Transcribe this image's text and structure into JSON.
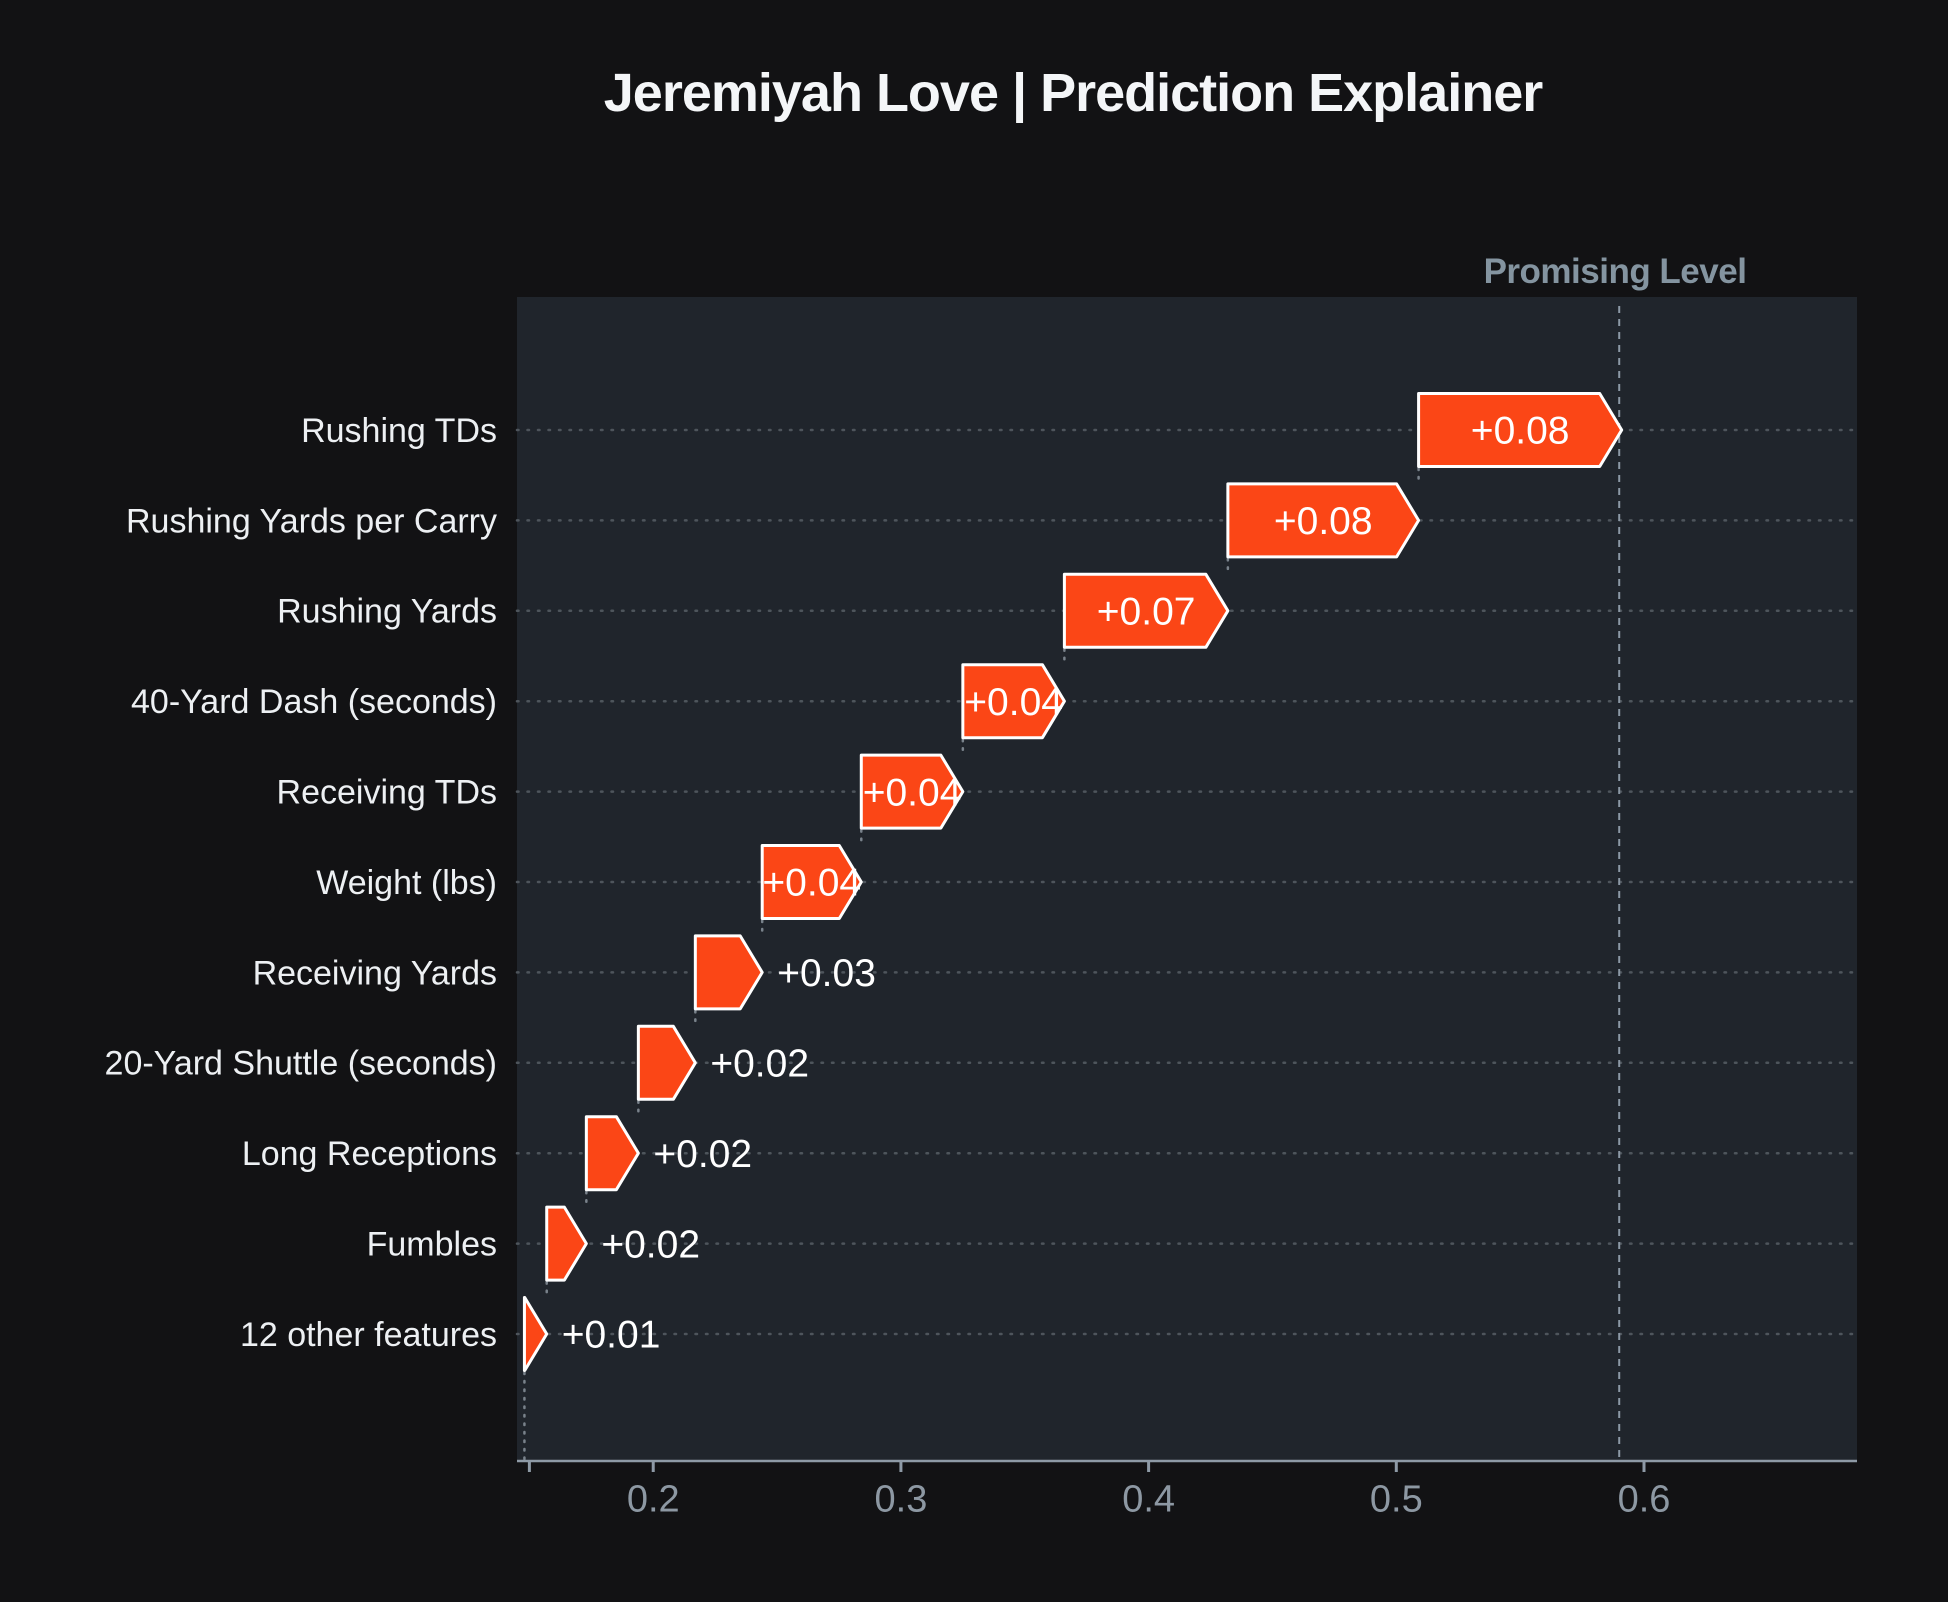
{
  "title": "Jeremiyah Love | Prediction Explainer",
  "colors": {
    "background": "#121214",
    "plot_background": "#20252C",
    "bar_fill": "#FB4616",
    "bar_stroke": "#FFFFFF",
    "value_text": "#FFFFFF",
    "category_text": "#EDF0F3",
    "title_text": "#F4F6F8",
    "axis": "#8E9AA6",
    "tick_text": "#8D98A3",
    "row_line": "#4E555C",
    "connector_line": "#79828B",
    "promising_line": "#8C99A6",
    "promising_text": "#8494A0"
  },
  "chart_data": {
    "type": "bar",
    "subtype": "waterfall",
    "orientation": "horizontal",
    "title": "Jeremiyah Love | Prediction Explainer",
    "grid": "dotted-row-lines",
    "x_axis": {
      "domain": [
        0.145,
        0.686
      ],
      "ticks": [
        {
          "value": 0.15,
          "label": ""
        },
        {
          "value": 0.2,
          "label": "0.2"
        },
        {
          "value": 0.3,
          "label": "0.3"
        },
        {
          "value": 0.4,
          "label": "0.4"
        },
        {
          "value": 0.5,
          "label": "0.5"
        },
        {
          "value": 0.6,
          "label": "0.6"
        }
      ]
    },
    "base_value": 0.148,
    "reference_line": {
      "label": "Promising Level",
      "value": 0.59
    },
    "features": [
      {
        "label": "Rushing TDs",
        "contribution_label": "+0.08",
        "contribution": 0.08,
        "start": 0.509,
        "end": 0.591
      },
      {
        "label": "Rushing Yards per Carry",
        "contribution_label": "+0.08",
        "contribution": 0.08,
        "start": 0.432,
        "end": 0.509
      },
      {
        "label": "Rushing Yards",
        "contribution_label": "+0.07",
        "contribution": 0.07,
        "start": 0.366,
        "end": 0.432
      },
      {
        "label": "40-Yard Dash (seconds)",
        "contribution_label": "+0.04",
        "contribution": 0.04,
        "start": 0.325,
        "end": 0.366
      },
      {
        "label": "Receiving TDs",
        "contribution_label": "+0.04",
        "contribution": 0.04,
        "start": 0.284,
        "end": 0.325
      },
      {
        "label": "Weight (lbs)",
        "contribution_label": "+0.04",
        "contribution": 0.04,
        "start": 0.244,
        "end": 0.284
      },
      {
        "label": "Receiving Yards",
        "contribution_label": "+0.03",
        "contribution": 0.03,
        "start": 0.217,
        "end": 0.244
      },
      {
        "label": "20-Yard Shuttle (seconds)",
        "contribution_label": "+0.02",
        "contribution": 0.02,
        "start": 0.194,
        "end": 0.217
      },
      {
        "label": "Long Receptions",
        "contribution_label": "+0.02",
        "contribution": 0.02,
        "start": 0.173,
        "end": 0.194
      },
      {
        "label": "Fumbles",
        "contribution_label": "+0.02",
        "contribution": 0.02,
        "start": 0.157,
        "end": 0.173
      },
      {
        "label": "12 other features",
        "contribution_label": "+0.01",
        "contribution": 0.01,
        "start": 0.148,
        "end": 0.157
      }
    ]
  }
}
